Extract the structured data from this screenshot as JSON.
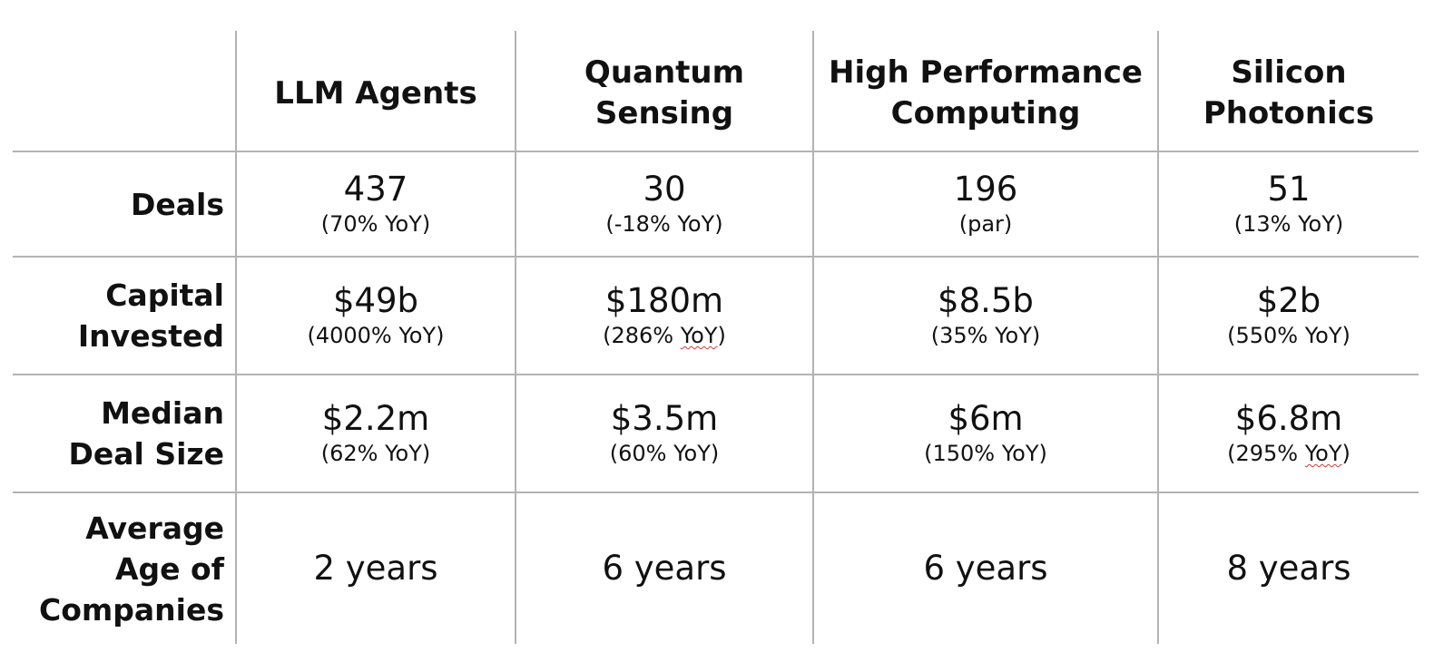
{
  "columns": [
    {
      "line1": "LLM Agents",
      "line2": ""
    },
    {
      "line1": "Quantum",
      "line2": "Sensing"
    },
    {
      "line1": "High Performance",
      "line2": "Computing"
    },
    {
      "line1": "Silicon",
      "line2": "Photonics"
    }
  ],
  "rows": {
    "deals": {
      "label_line1": "Deals",
      "values": [
        {
          "main": "437",
          "pre": "(70% ",
          "yoy": "YoY",
          "post": ")"
        },
        {
          "main": "30",
          "pre": "(-18% ",
          "yoy": "YoY",
          "post": ")"
        },
        {
          "main": "196",
          "pre": "(par)",
          "yoy": "",
          "post": ""
        },
        {
          "main": "51",
          "pre": "(13% ",
          "yoy": "YoY",
          "post": ")"
        }
      ]
    },
    "capital": {
      "label_line1": "Capital",
      "label_line2": "Invested",
      "values": [
        {
          "main": "$49b",
          "pre": "(4000% ",
          "yoy": "YoY",
          "post": ")"
        },
        {
          "main": "$180m",
          "pre": "(286% ",
          "yoy": "YoY",
          "post": ")"
        },
        {
          "main": "$8.5b",
          "pre": "(35% ",
          "yoy": "YoY",
          "post": ")"
        },
        {
          "main": "$2b",
          "pre": "(550% ",
          "yoy": "YoY",
          "post": ")"
        }
      ]
    },
    "median": {
      "label_line1": "Median",
      "label_line2": "Deal Size",
      "values": [
        {
          "main": "$2.2m",
          "pre": "(62% ",
          "yoy": "YoY",
          "post": ")"
        },
        {
          "main": "$3.5m",
          "pre": "(60% ",
          "yoy": "YoY",
          "post": ")"
        },
        {
          "main": "$6m",
          "pre": "(150% ",
          "yoy": "YoY",
          "post": ")"
        },
        {
          "main": "$6.8m",
          "pre": "(295% ",
          "yoy": "YoY",
          "post": ")"
        }
      ]
    },
    "age": {
      "label_line1": "Average",
      "label_line2": "Age of",
      "label_line3": "Companies",
      "values": [
        "2 years",
        "6 years",
        "6 years",
        "8 years"
      ]
    }
  },
  "colors": {
    "divider": "#b3b3b3",
    "text": "#111111",
    "spellcheck_underline": "#d83a3a"
  }
}
